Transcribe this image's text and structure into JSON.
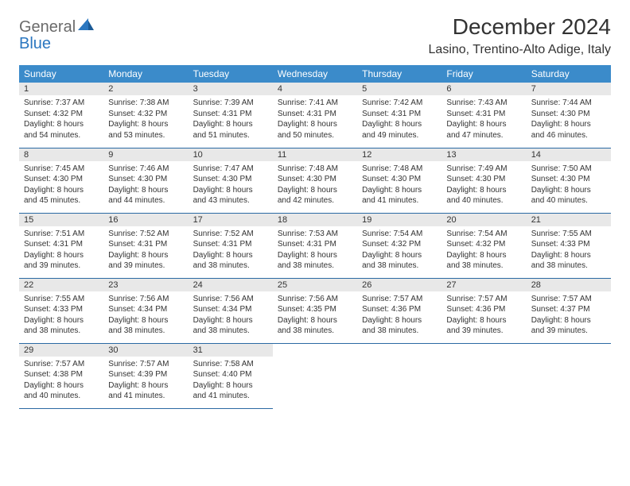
{
  "brand": {
    "general": "General",
    "blue": "Blue"
  },
  "title": "December 2024",
  "location": "Lasino, Trentino-Alto Adige, Italy",
  "colors": {
    "header_bg": "#3b8bca",
    "header_text": "#ffffff",
    "row_border": "#2b6aa3",
    "daynum_bg": "#e8e8e8",
    "text": "#333333",
    "logo_gray": "#6a6a6a",
    "logo_blue": "#2b77c0"
  },
  "typography": {
    "title_fontsize": 28,
    "location_fontsize": 16,
    "header_fontsize": 12,
    "daynum_fontsize": 11,
    "body_fontsize": 10
  },
  "weekdays": [
    "Sunday",
    "Monday",
    "Tuesday",
    "Wednesday",
    "Thursday",
    "Friday",
    "Saturday"
  ],
  "weeks": [
    [
      {
        "n": "1",
        "sunrise": "Sunrise: 7:37 AM",
        "sunset": "Sunset: 4:32 PM",
        "daylight": "Daylight: 8 hours and 54 minutes."
      },
      {
        "n": "2",
        "sunrise": "Sunrise: 7:38 AM",
        "sunset": "Sunset: 4:32 PM",
        "daylight": "Daylight: 8 hours and 53 minutes."
      },
      {
        "n": "3",
        "sunrise": "Sunrise: 7:39 AM",
        "sunset": "Sunset: 4:31 PM",
        "daylight": "Daylight: 8 hours and 51 minutes."
      },
      {
        "n": "4",
        "sunrise": "Sunrise: 7:41 AM",
        "sunset": "Sunset: 4:31 PM",
        "daylight": "Daylight: 8 hours and 50 minutes."
      },
      {
        "n": "5",
        "sunrise": "Sunrise: 7:42 AM",
        "sunset": "Sunset: 4:31 PM",
        "daylight": "Daylight: 8 hours and 49 minutes."
      },
      {
        "n": "6",
        "sunrise": "Sunrise: 7:43 AM",
        "sunset": "Sunset: 4:31 PM",
        "daylight": "Daylight: 8 hours and 47 minutes."
      },
      {
        "n": "7",
        "sunrise": "Sunrise: 7:44 AM",
        "sunset": "Sunset: 4:30 PM",
        "daylight": "Daylight: 8 hours and 46 minutes."
      }
    ],
    [
      {
        "n": "8",
        "sunrise": "Sunrise: 7:45 AM",
        "sunset": "Sunset: 4:30 PM",
        "daylight": "Daylight: 8 hours and 45 minutes."
      },
      {
        "n": "9",
        "sunrise": "Sunrise: 7:46 AM",
        "sunset": "Sunset: 4:30 PM",
        "daylight": "Daylight: 8 hours and 44 minutes."
      },
      {
        "n": "10",
        "sunrise": "Sunrise: 7:47 AM",
        "sunset": "Sunset: 4:30 PM",
        "daylight": "Daylight: 8 hours and 43 minutes."
      },
      {
        "n": "11",
        "sunrise": "Sunrise: 7:48 AM",
        "sunset": "Sunset: 4:30 PM",
        "daylight": "Daylight: 8 hours and 42 minutes."
      },
      {
        "n": "12",
        "sunrise": "Sunrise: 7:48 AM",
        "sunset": "Sunset: 4:30 PM",
        "daylight": "Daylight: 8 hours and 41 minutes."
      },
      {
        "n": "13",
        "sunrise": "Sunrise: 7:49 AM",
        "sunset": "Sunset: 4:30 PM",
        "daylight": "Daylight: 8 hours and 40 minutes."
      },
      {
        "n": "14",
        "sunrise": "Sunrise: 7:50 AM",
        "sunset": "Sunset: 4:30 PM",
        "daylight": "Daylight: 8 hours and 40 minutes."
      }
    ],
    [
      {
        "n": "15",
        "sunrise": "Sunrise: 7:51 AM",
        "sunset": "Sunset: 4:31 PM",
        "daylight": "Daylight: 8 hours and 39 minutes."
      },
      {
        "n": "16",
        "sunrise": "Sunrise: 7:52 AM",
        "sunset": "Sunset: 4:31 PM",
        "daylight": "Daylight: 8 hours and 39 minutes."
      },
      {
        "n": "17",
        "sunrise": "Sunrise: 7:52 AM",
        "sunset": "Sunset: 4:31 PM",
        "daylight": "Daylight: 8 hours and 38 minutes."
      },
      {
        "n": "18",
        "sunrise": "Sunrise: 7:53 AM",
        "sunset": "Sunset: 4:31 PM",
        "daylight": "Daylight: 8 hours and 38 minutes."
      },
      {
        "n": "19",
        "sunrise": "Sunrise: 7:54 AM",
        "sunset": "Sunset: 4:32 PM",
        "daylight": "Daylight: 8 hours and 38 minutes."
      },
      {
        "n": "20",
        "sunrise": "Sunrise: 7:54 AM",
        "sunset": "Sunset: 4:32 PM",
        "daylight": "Daylight: 8 hours and 38 minutes."
      },
      {
        "n": "21",
        "sunrise": "Sunrise: 7:55 AM",
        "sunset": "Sunset: 4:33 PM",
        "daylight": "Daylight: 8 hours and 38 minutes."
      }
    ],
    [
      {
        "n": "22",
        "sunrise": "Sunrise: 7:55 AM",
        "sunset": "Sunset: 4:33 PM",
        "daylight": "Daylight: 8 hours and 38 minutes."
      },
      {
        "n": "23",
        "sunrise": "Sunrise: 7:56 AM",
        "sunset": "Sunset: 4:34 PM",
        "daylight": "Daylight: 8 hours and 38 minutes."
      },
      {
        "n": "24",
        "sunrise": "Sunrise: 7:56 AM",
        "sunset": "Sunset: 4:34 PM",
        "daylight": "Daylight: 8 hours and 38 minutes."
      },
      {
        "n": "25",
        "sunrise": "Sunrise: 7:56 AM",
        "sunset": "Sunset: 4:35 PM",
        "daylight": "Daylight: 8 hours and 38 minutes."
      },
      {
        "n": "26",
        "sunrise": "Sunrise: 7:57 AM",
        "sunset": "Sunset: 4:36 PM",
        "daylight": "Daylight: 8 hours and 38 minutes."
      },
      {
        "n": "27",
        "sunrise": "Sunrise: 7:57 AM",
        "sunset": "Sunset: 4:36 PM",
        "daylight": "Daylight: 8 hours and 39 minutes."
      },
      {
        "n": "28",
        "sunrise": "Sunrise: 7:57 AM",
        "sunset": "Sunset: 4:37 PM",
        "daylight": "Daylight: 8 hours and 39 minutes."
      }
    ],
    [
      {
        "n": "29",
        "sunrise": "Sunrise: 7:57 AM",
        "sunset": "Sunset: 4:38 PM",
        "daylight": "Daylight: 8 hours and 40 minutes."
      },
      {
        "n": "30",
        "sunrise": "Sunrise: 7:57 AM",
        "sunset": "Sunset: 4:39 PM",
        "daylight": "Daylight: 8 hours and 41 minutes."
      },
      {
        "n": "31",
        "sunrise": "Sunrise: 7:58 AM",
        "sunset": "Sunset: 4:40 PM",
        "daylight": "Daylight: 8 hours and 41 minutes."
      },
      null,
      null,
      null,
      null
    ]
  ]
}
